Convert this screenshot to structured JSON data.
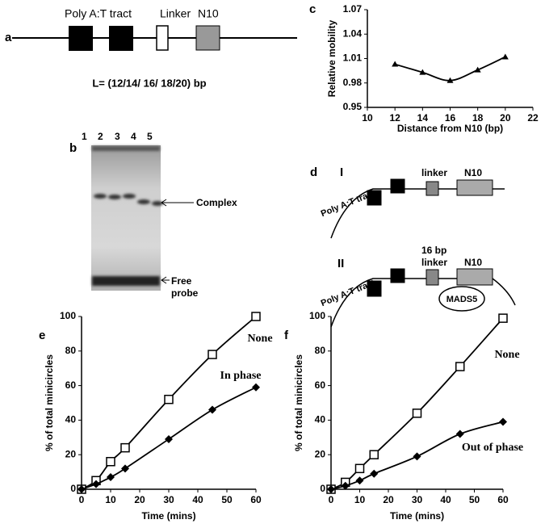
{
  "panel_labels": [
    "a",
    "b",
    "c",
    "d",
    "e",
    "f"
  ],
  "diagram_a": {
    "labels": [
      "Poly A:T tract",
      "Linker",
      "N10"
    ],
    "length": "L= (12/14/ 16/ 18/20) bp"
  },
  "gel_b": {
    "lanes": [
      "1",
      "2",
      "3",
      "4",
      "5"
    ],
    "complex": "Complex",
    "free_probe": [
      "Free",
      "probe"
    ]
  },
  "diagram_d": {
    "I": {
      "numeral": "I",
      "tract": "Poly A:T tract",
      "linker": "linker",
      "n10": "N10"
    },
    "II": {
      "numeral": "II",
      "tract": "Poly A:T tract",
      "linker": [
        "16 bp",
        "linker"
      ],
      "n10": "N10",
      "protein": "MADS5"
    }
  },
  "chart_data": [
    {
      "type": "line",
      "xlabel": "Distance from N10 (bp)",
      "ylabel": "Relative mobility",
      "x": [
        12,
        14,
        16,
        18,
        20
      ],
      "series": [
        {
          "color": "#000000",
          "marker": "triangle",
          "values": [
            1.003,
            0.993,
            0.983,
            0.996,
            1.012
          ]
        }
      ],
      "xlim": [
        10,
        22
      ],
      "xticks": [
        10,
        12,
        14,
        16,
        18,
        20,
        22
      ],
      "ylim": [
        0.95,
        1.07
      ],
      "yticks": [
        0.95,
        0.98,
        1.01,
        1.04,
        1.07
      ]
    },
    {
      "type": "line",
      "xlabel": "Time (mins)",
      "ylabel": "% of total minicircles",
      "x": [
        0,
        5,
        10,
        15,
        30,
        45,
        60
      ],
      "series": [
        {
          "name": "None",
          "color": "#000000",
          "marker": "square",
          "values": [
            0,
            5,
            16,
            24,
            52,
            78,
            100
          ]
        },
        {
          "name": "In phase",
          "color": "#000000",
          "marker": "diamond",
          "values": [
            0,
            3,
            7,
            12,
            29,
            46,
            59
          ]
        }
      ],
      "xlim": [
        0,
        60
      ],
      "xticks": [
        0,
        10,
        20,
        30,
        40,
        50,
        60
      ],
      "ylim": [
        0,
        100
      ],
      "yticks": [
        0,
        20,
        40,
        60,
        80,
        100
      ]
    },
    {
      "type": "line",
      "xlabel": "Time (mins)",
      "ylabel": "% of total minicircles",
      "x": [
        0,
        5,
        10,
        15,
        30,
        45,
        60
      ],
      "series": [
        {
          "name": "None",
          "color": "#000000",
          "marker": "square",
          "values": [
            0,
            4,
            12,
            20,
            44,
            71,
            99
          ]
        },
        {
          "name": "Out of phase",
          "color": "#000000",
          "marker": "diamond",
          "values": [
            0,
            2,
            5,
            9,
            19,
            32,
            39
          ]
        }
      ],
      "xlim": [
        0,
        60
      ],
      "xticks": [
        0,
        10,
        20,
        30,
        40,
        50,
        60
      ],
      "ylim": [
        0,
        100
      ],
      "yticks": [
        0,
        20,
        40,
        60,
        80,
        100
      ]
    }
  ]
}
